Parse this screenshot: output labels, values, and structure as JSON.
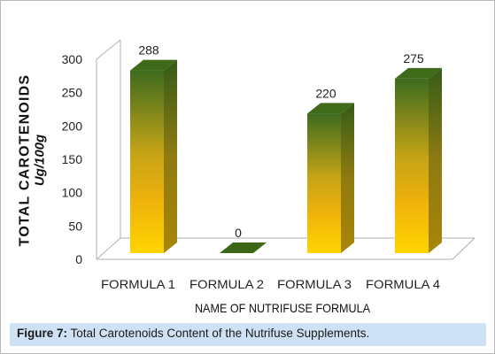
{
  "chart_data": {
    "type": "bar",
    "style": "3d-column",
    "categories": [
      "FORMULA 1",
      "FORMULA 2",
      "FORMULA 3",
      "FORMULA 4"
    ],
    "values": [
      288,
      0,
      220,
      275
    ],
    "data_labels": [
      "288",
      "0",
      "220",
      "275"
    ],
    "ylabel_line1": "TOTAL CAROTENOIDS",
    "ylabel_line2": "Ug/100g",
    "xlabel": "NAME OF NUTRIFUSE FORMULA",
    "ylim": [
      0,
      300
    ],
    "yticks": [
      0,
      50,
      100,
      150,
      200,
      250,
      300
    ],
    "grid": false,
    "legend": "none",
    "colors": {
      "bar_top_gradient": "#3d6b1e",
      "bar_mid_gradient": "#e0b010",
      "bar_bottom_gradient": "#ffd400",
      "bar_side": "#4f7a25",
      "bar_cap": "#3f6a1a",
      "axis": "#b0b0b0"
    }
  },
  "caption": {
    "label": "Figure 7:",
    "text": "Total Carotenoids Content of the Nutrifuse Supplements.",
    "background": "#cfe1f5"
  }
}
